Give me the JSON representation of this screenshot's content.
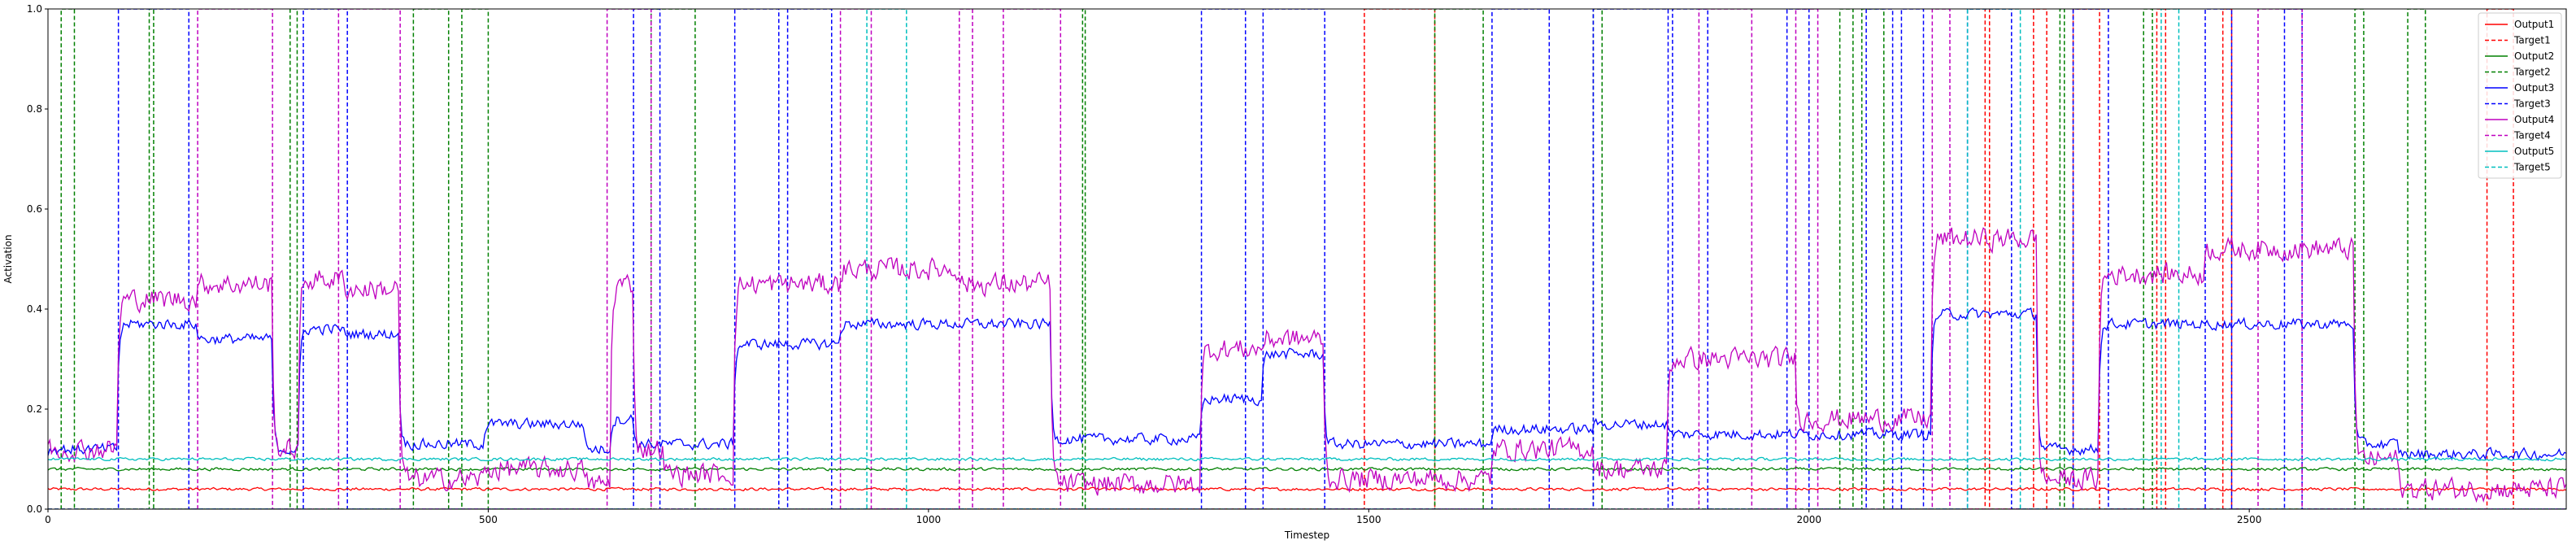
{
  "chart_data": {
    "type": "line",
    "title": "",
    "xlabel": "Timestep",
    "ylabel": "Activation",
    "xlim": [
      0,
      2860
    ],
    "ylim": [
      0.0,
      1.0
    ],
    "x_ticks": [
      0,
      500,
      1000,
      1500,
      2000,
      2500
    ],
    "y_ticks": [
      "0.0",
      "0.2",
      "0.4",
      "0.6",
      "0.8",
      "1.0"
    ],
    "legend_position": "top-right",
    "series": [
      {
        "name": "Output1",
        "color": "#ff0000",
        "style": "solid",
        "kind": "output",
        "base": 0.04,
        "idx": 0
      },
      {
        "name": "Target1",
        "color": "#ff0000",
        "style": "dashed",
        "kind": "target",
        "intervals": [
          [
            1495,
            1575
          ],
          [
            2200,
            2205
          ],
          [
            2255,
            2270
          ],
          [
            2300,
            2330
          ],
          [
            2395,
            2405
          ],
          [
            2470,
            2480
          ],
          [
            2770,
            2800
          ]
        ]
      },
      {
        "name": "Output2",
        "color": "#008000",
        "style": "solid",
        "kind": "output",
        "base": 0.08,
        "idx": 1
      },
      {
        "name": "Target2",
        "color": "#008000",
        "style": "dashed",
        "kind": "target",
        "intervals": [
          [
            15,
            30
          ],
          [
            115,
            120
          ],
          [
            275,
            283
          ],
          [
            415,
            455
          ],
          [
            470,
            500
          ],
          [
            685,
            735
          ],
          [
            1175,
            1178
          ],
          [
            1575,
            1630
          ],
          [
            1755,
            1765
          ],
          [
            2035,
            2050
          ],
          [
            2060,
            2085
          ],
          [
            2285,
            2290
          ],
          [
            2380,
            2390
          ],
          [
            2620,
            2630
          ],
          [
            2680,
            2700
          ]
        ]
      },
      {
        "name": "Output3",
        "color": "#0000ff",
        "style": "solid",
        "kind": "output",
        "base": 0.13,
        "idx": 2
      },
      {
        "name": "Target3",
        "color": "#0000ff",
        "style": "dashed",
        "kind": "target",
        "intervals": [
          [
            80,
            160
          ],
          [
            290,
            340
          ],
          [
            665,
            695
          ],
          [
            780,
            830
          ],
          [
            840,
            890
          ],
          [
            1310,
            1360
          ],
          [
            1380,
            1450
          ],
          [
            1640,
            1705
          ],
          [
            1755,
            1840
          ],
          [
            1845,
            1885
          ],
          [
            1975,
            2000
          ],
          [
            2065,
            2095
          ],
          [
            2105,
            2130
          ],
          [
            2180,
            2230
          ],
          [
            2300,
            2340
          ],
          [
            2450,
            2480
          ],
          [
            2540,
            2560
          ]
        ]
      },
      {
        "name": "Output4",
        "color": "#bf00bf",
        "style": "solid",
        "kind": "output",
        "base": 0.05,
        "idx": 3
      },
      {
        "name": "Target4",
        "color": "#bf00bf",
        "style": "dashed",
        "kind": "target",
        "intervals": [
          [
            170,
            255
          ],
          [
            330,
            400
          ],
          [
            635,
            685
          ],
          [
            900,
            935
          ],
          [
            1035,
            1050
          ],
          [
            1085,
            1150
          ],
          [
            1875,
            1935
          ],
          [
            1985,
            2010
          ],
          [
            2140,
            2160
          ],
          [
            2510,
            2560
          ]
        ]
      },
      {
        "name": "Output5",
        "color": "#00bfbf",
        "style": "solid",
        "kind": "output",
        "base": 0.1,
        "idx": 4
      },
      {
        "name": "Target5",
        "color": "#00bfbf",
        "style": "dashed",
        "kind": "target",
        "intervals": [
          [
            930,
            975
          ],
          [
            2180,
            2240
          ],
          [
            2400,
            2420
          ]
        ]
      }
    ],
    "active_segments": [
      [
        0,
        80,
        0.12,
        0.12
      ],
      [
        80,
        170,
        0.37,
        0.42
      ],
      [
        170,
        255,
        0.34,
        0.45
      ],
      [
        255,
        285,
        0.12,
        0.12
      ],
      [
        285,
        335,
        0.36,
        0.46
      ],
      [
        335,
        400,
        0.35,
        0.44
      ],
      [
        400,
        495,
        0.13,
        0.06
      ],
      [
        495,
        610,
        0.17,
        0.08
      ],
      [
        610,
        640,
        0.12,
        0.05
      ],
      [
        640,
        665,
        0.18,
        0.45
      ],
      [
        665,
        700,
        0.13,
        0.12
      ],
      [
        700,
        780,
        0.13,
        0.07
      ],
      [
        780,
        900,
        0.33,
        0.45
      ],
      [
        900,
        1035,
        0.37,
        0.48
      ],
      [
        1035,
        1140,
        0.37,
        0.45
      ],
      [
        1140,
        1310,
        0.14,
        0.05
      ],
      [
        1310,
        1380,
        0.22,
        0.32
      ],
      [
        1380,
        1450,
        0.31,
        0.34
      ],
      [
        1450,
        1640,
        0.13,
        0.06
      ],
      [
        1640,
        1755,
        0.16,
        0.12
      ],
      [
        1755,
        1840,
        0.17,
        0.08
      ],
      [
        1840,
        1985,
        0.15,
        0.3
      ],
      [
        1985,
        2140,
        0.15,
        0.18
      ],
      [
        2140,
        2260,
        0.39,
        0.54
      ],
      [
        2260,
        2330,
        0.12,
        0.06
      ],
      [
        2330,
        2450,
        0.37,
        0.47
      ],
      [
        2450,
        2620,
        0.37,
        0.52
      ],
      [
        2620,
        2670,
        0.13,
        0.1
      ],
      [
        2670,
        2860,
        0.11,
        0.04
      ]
    ]
  }
}
